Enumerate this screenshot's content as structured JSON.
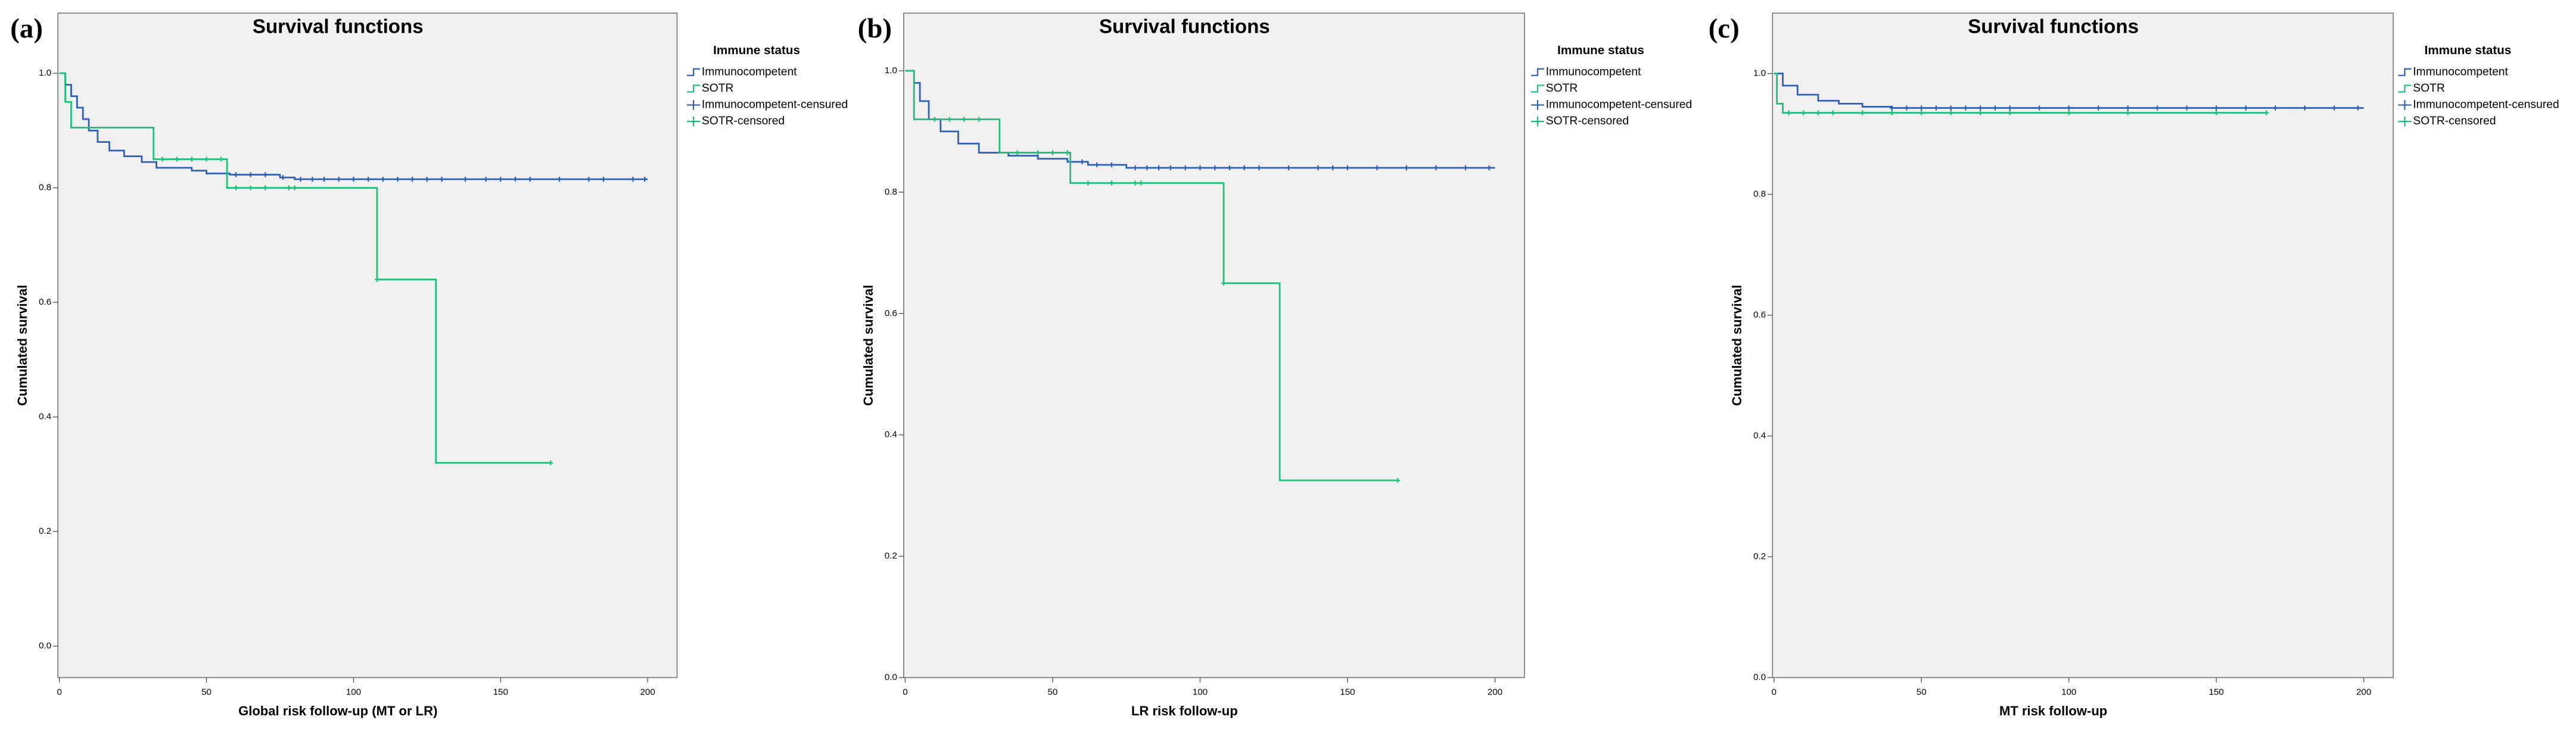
{
  "chart_data": [
    {
      "type": "line",
      "panel_label": "(a)",
      "title": "Survival functions",
      "x_label": "Global risk follow-up (MT or LR)",
      "y_label": "Cumulated survival",
      "legend_title": "Immune status",
      "background": "#f0f0f0",
      "xlim": [
        -0.5,
        210
      ],
      "ylim": [
        -0.055,
        1.105
      ],
      "xticks": [
        0,
        50,
        100,
        150,
        200
      ],
      "yticks": [
        {
          "value": 0,
          "label": "0.0"
        },
        0.2,
        0.4,
        0.6,
        0.8,
        {
          "value": 1,
          "label": "1.0"
        }
      ],
      "series": [
        {
          "name": "Immunocompetent",
          "color": "#2f5fb3",
          "style": "step",
          "x": [
            0,
            2,
            4,
            6,
            8,
            10,
            13,
            17,
            22,
            28,
            33,
            45,
            50,
            58,
            75,
            80,
            200
          ],
          "values": [
            1.0,
            0.98,
            0.96,
            0.94,
            0.92,
            0.9,
            0.88,
            0.865,
            0.855,
            0.845,
            0.835,
            0.83,
            0.825,
            0.823,
            0.818,
            0.815,
            0.815
          ]
        },
        {
          "name": "SOTR",
          "color": "#1ebf78",
          "style": "step",
          "x": [
            0,
            2,
            4,
            32,
            57,
            108,
            128,
            167
          ],
          "values": [
            1.0,
            0.95,
            0.905,
            0.85,
            0.8,
            0.64,
            0.32,
            0.32
          ]
        },
        {
          "name": "Immunocompetent-censured",
          "color": "#2f5fb3",
          "style": "marker",
          "x": [
            60,
            65,
            70,
            76,
            82,
            86,
            90,
            95,
            100,
            105,
            110,
            115,
            120,
            125,
            130,
            138,
            145,
            150,
            155,
            160,
            170,
            180,
            185,
            195,
            199
          ],
          "values": [
            0.823,
            0.823,
            0.823,
            0.818,
            0.815,
            0.815,
            0.815,
            0.815,
            0.815,
            0.815,
            0.815,
            0.815,
            0.815,
            0.815,
            0.815,
            0.815,
            0.815,
            0.815,
            0.815,
            0.815,
            0.815,
            0.815,
            0.815,
            0.815,
            0.815
          ]
        },
        {
          "name": "SOTR-censored",
          "color": "#1ebf78",
          "style": "marker",
          "x": [
            35,
            40,
            45,
            50,
            55,
            60,
            65,
            70,
            78,
            80,
            108,
            167
          ],
          "values": [
            0.85,
            0.85,
            0.85,
            0.85,
            0.85,
            0.8,
            0.8,
            0.8,
            0.8,
            0.8,
            0.64,
            0.32
          ]
        }
      ]
    },
    {
      "type": "line",
      "panel_label": "(b)",
      "title": "Survival functions",
      "x_label": "LR risk follow-up",
      "y_label": "Cumulated survival",
      "legend_title": "Immune status",
      "background": "#f0f0f0",
      "xlim": [
        -0.5,
        210
      ],
      "ylim": [
        0,
        1.095
      ],
      "xticks": [
        0,
        50,
        100,
        150,
        200
      ],
      "yticks": [
        {
          "value": 0,
          "label": "0.0"
        },
        0.2,
        0.4,
        0.6,
        0.8,
        {
          "value": 1,
          "label": "1.0"
        }
      ],
      "series": [
        {
          "name": "Immunocompetent",
          "color": "#2f5fb3",
          "style": "step",
          "x": [
            0,
            3,
            5,
            8,
            12,
            18,
            25,
            35,
            45,
            55,
            62,
            75,
            200
          ],
          "values": [
            1.0,
            0.98,
            0.95,
            0.92,
            0.9,
            0.88,
            0.865,
            0.86,
            0.855,
            0.85,
            0.845,
            0.84,
            0.84
          ]
        },
        {
          "name": "SOTR",
          "color": "#1ebf78",
          "style": "step",
          "x": [
            0,
            3,
            32,
            56,
            108,
            127,
            167
          ],
          "values": [
            1.0,
            0.92,
            0.865,
            0.815,
            0.65,
            0.325,
            0.325
          ]
        },
        {
          "name": "Immunocompetent-censured",
          "color": "#2f5fb3",
          "style": "marker",
          "x": [
            60,
            65,
            70,
            78,
            82,
            86,
            90,
            95,
            100,
            105,
            110,
            115,
            120,
            130,
            140,
            145,
            150,
            160,
            170,
            180,
            190,
            198
          ],
          "values": [
            0.85,
            0.845,
            0.845,
            0.84,
            0.84,
            0.84,
            0.84,
            0.84,
            0.84,
            0.84,
            0.84,
            0.84,
            0.84,
            0.84,
            0.84,
            0.84,
            0.84,
            0.84,
            0.84,
            0.84,
            0.84,
            0.84
          ]
        },
        {
          "name": "SOTR-censored",
          "color": "#1ebf78",
          "style": "marker",
          "x": [
            10,
            15,
            20,
            25,
            38,
            45,
            50,
            55,
            62,
            70,
            78,
            80,
            108,
            167
          ],
          "values": [
            0.92,
            0.92,
            0.92,
            0.92,
            0.865,
            0.865,
            0.865,
            0.865,
            0.815,
            0.815,
            0.815,
            0.815,
            0.65,
            0.325
          ]
        }
      ]
    },
    {
      "type": "line",
      "panel_label": "(c)",
      "title": "Survival functions",
      "x_label": "MT risk follow-up",
      "y_label": "Cumulated survival",
      "legend_title": "Immune status",
      "background": "#f0f0f0",
      "xlim": [
        -0.5,
        210
      ],
      "ylim": [
        0,
        1.1
      ],
      "xticks": [
        0,
        50,
        100,
        150,
        200
      ],
      "yticks": [
        {
          "value": 0,
          "label": "0.0"
        },
        0.2,
        0.4,
        0.6,
        0.8,
        {
          "value": 1,
          "label": "1.0"
        }
      ],
      "series": [
        {
          "name": "Immunocompetent",
          "color": "#2f5fb3",
          "style": "step",
          "x": [
            0,
            3,
            8,
            15,
            22,
            30,
            40,
            200
          ],
          "values": [
            1.0,
            0.98,
            0.965,
            0.955,
            0.95,
            0.945,
            0.943,
            0.943
          ]
        },
        {
          "name": "SOTR",
          "color": "#1ebf78",
          "style": "step",
          "x": [
            0,
            1,
            3,
            167
          ],
          "values": [
            1.0,
            0.95,
            0.935,
            0.935
          ]
        },
        {
          "name": "Immunocompetent-censured",
          "color": "#2f5fb3",
          "style": "marker",
          "x": [
            40,
            45,
            50,
            55,
            60,
            65,
            70,
            75,
            80,
            90,
            100,
            110,
            120,
            130,
            140,
            150,
            160,
            170,
            180,
            190,
            198
          ],
          "values": [
            0.943,
            0.943,
            0.943,
            0.943,
            0.943,
            0.943,
            0.943,
            0.943,
            0.943,
            0.943,
            0.943,
            0.943,
            0.943,
            0.943,
            0.943,
            0.943,
            0.943,
            0.943,
            0.943,
            0.943,
            0.943
          ]
        },
        {
          "name": "SOTR-censored",
          "color": "#1ebf78",
          "style": "marker",
          "x": [
            5,
            10,
            15,
            20,
            30,
            40,
            50,
            60,
            70,
            80,
            100,
            120,
            150,
            167
          ],
          "values": [
            0.935,
            0.935,
            0.935,
            0.935,
            0.935,
            0.935,
            0.935,
            0.935,
            0.935,
            0.935,
            0.935,
            0.935,
            0.935,
            0.935
          ]
        }
      ]
    }
  ]
}
